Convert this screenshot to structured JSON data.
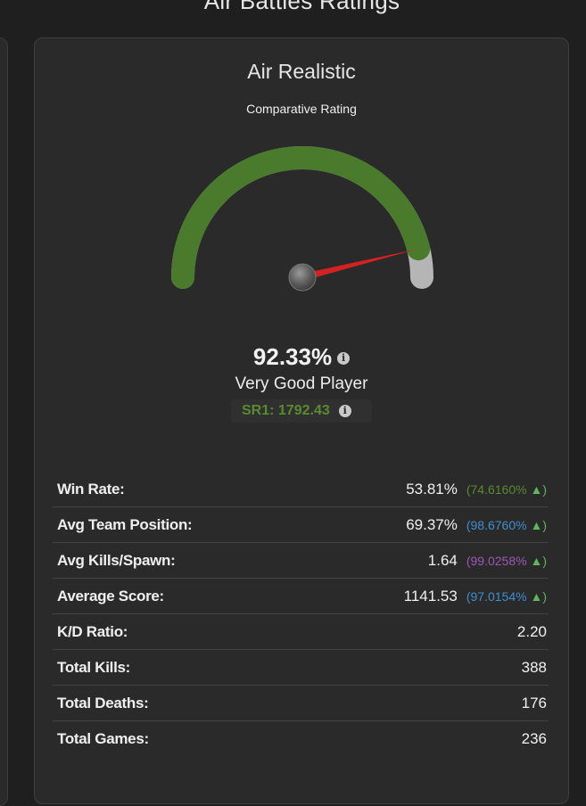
{
  "page": {
    "title": "Air Battles Ratings"
  },
  "card": {
    "title": "Air Realistic",
    "comparative_label": "Comparative Rating",
    "gauge_fraction": 0.9233,
    "score": "92.33%",
    "player_label": "Very Good Player",
    "sr": "SR1: 1792.43"
  },
  "colors": {
    "gauge_fill": "#4a7a2b",
    "gauge_track": "#b5b5b5",
    "needle": "#d42222",
    "green": "#5a8a2e",
    "blue": "#3f8fd0",
    "purple": "#9b59b6"
  },
  "stats": [
    {
      "label": "Win Rate:",
      "value": "53.81%",
      "percentile": "(74.6160%",
      "arrow": "▲)",
      "color": "#5a8a2e"
    },
    {
      "label": "Avg Team Position:",
      "value": "69.37%",
      "percentile": "(98.6760%",
      "arrow": "▲)",
      "color": "#3f8fd0"
    },
    {
      "label": "Avg Kills/Spawn:",
      "value": "1.64",
      "percentile": "(99.0258%",
      "arrow": "▲)",
      "color": "#9b59b6"
    },
    {
      "label": "Average Score:",
      "value": "1141.53",
      "percentile": "(97.0154%",
      "arrow": "▲)",
      "color": "#3f8fd0"
    },
    {
      "label": "K/D Ratio:",
      "value": "2.20"
    },
    {
      "label": "Total Kills:",
      "value": "388"
    },
    {
      "label": "Total Deaths:",
      "value": "176"
    },
    {
      "label": "Total Games:",
      "value": "236"
    }
  ]
}
